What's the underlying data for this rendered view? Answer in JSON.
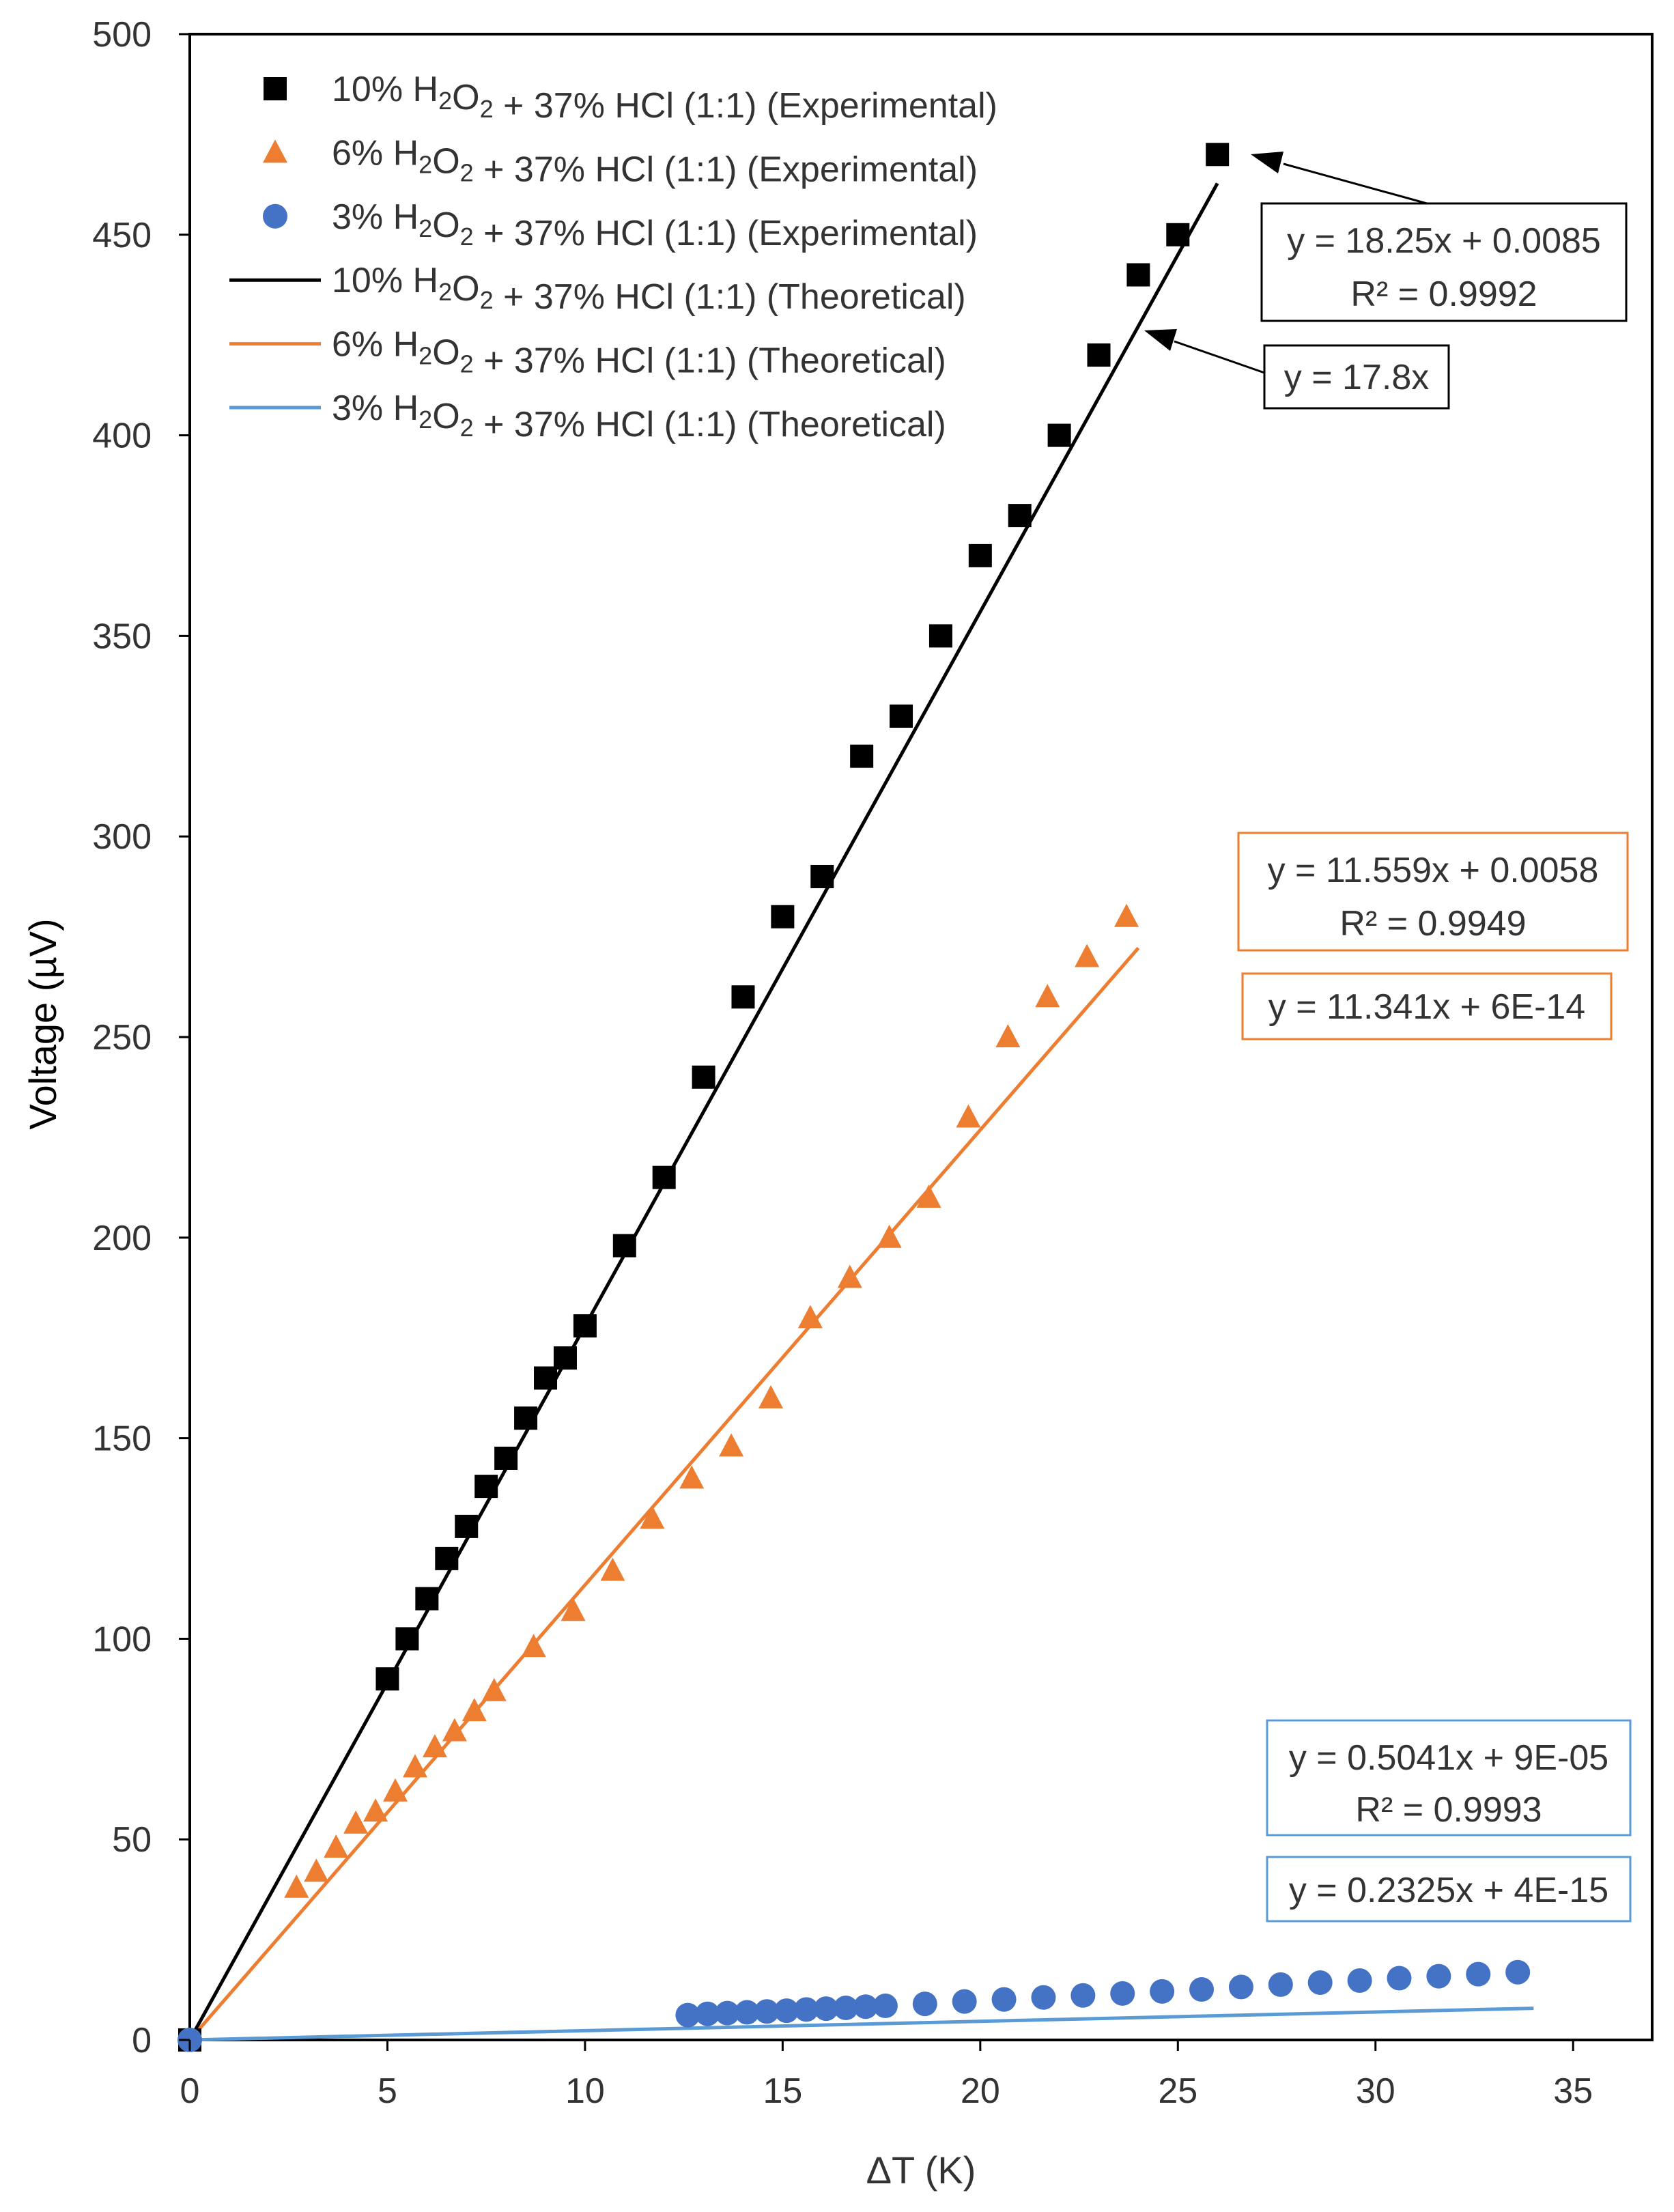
{
  "chart_data": {
    "type": "scatter",
    "title": "",
    "xlabel": "ΔT (K)",
    "ylabel": "Voltage (µV)",
    "xlim": [
      0,
      37
    ],
    "ylim": [
      0,
      500
    ],
    "x_ticks": [
      0,
      5,
      10,
      15,
      20,
      25,
      30,
      35
    ],
    "y_ticks": [
      0,
      50,
      100,
      150,
      200,
      250,
      300,
      350,
      400,
      450,
      500
    ],
    "x_tick_labels": [
      "0",
      "5",
      "10",
      "15",
      "20",
      "25",
      "30",
      "35"
    ],
    "y_tick_labels": [
      "0",
      "50",
      "100",
      "150",
      "200",
      "250",
      "300",
      "350",
      "400",
      "450",
      "500"
    ],
    "grid": false,
    "legend_position": "top-left",
    "colors": {
      "black": "#000000",
      "orange": "#ED7D31",
      "blue": "#4472C4",
      "lightblue": "#5B9BD5"
    },
    "series": [
      {
        "name": "10% H2O2 + 37% HCl (1:1) (Experimental)",
        "legend_parts": {
          "a": "10% H",
          "b": "2",
          "c": "O",
          "d": "2",
          "e": " + 37% HCl (1:1) (Experimental)"
        },
        "marker": "square",
        "color": "#000000",
        "x": [
          0,
          5,
          5.5,
          6,
          6.5,
          7,
          7.5,
          8,
          8.5,
          9,
          9.5,
          10,
          11,
          12,
          13,
          14,
          15,
          16,
          17,
          18,
          19,
          20,
          21,
          22,
          23,
          24,
          25,
          26
        ],
        "y": [
          0,
          90,
          100,
          110,
          120,
          128,
          138,
          145,
          155,
          165,
          170,
          178,
          198,
          215,
          240,
          260,
          280,
          290,
          320,
          330,
          350,
          370,
          380,
          400,
          420,
          440,
          450,
          470
        ]
      },
      {
        "name": "6% H2O2 + 37% HCl (1:1) (Experimental)",
        "legend_parts": {
          "a": "6% H",
          "b": "2",
          "c": "O",
          "d": "2",
          "e": " + 37% HCl (1:1) (Experimental)"
        },
        "marker": "triangle",
        "color": "#ED7D31",
        "x": [
          2.7,
          3.2,
          3.7,
          4.2,
          4.7,
          5.2,
          5.7,
          6.2,
          6.7,
          7.2,
          7.7,
          8.7,
          9.7,
          10.7,
          11.7,
          12.7,
          13.7,
          14.7,
          15.7,
          16.7,
          17.7,
          18.7,
          19.7,
          20.7,
          21.7,
          22.7,
          23.7
        ],
        "y": [
          38,
          42,
          48,
          54,
          57,
          62,
          68,
          73,
          77,
          82,
          87,
          98,
          107,
          117,
          130,
          140,
          148,
          160,
          180,
          190,
          200,
          210,
          230,
          250,
          260,
          270,
          280
        ]
      },
      {
        "name": "3% H2O2 + 37% HCl (1:1) (Experimental)",
        "legend_parts": {
          "a": "3% H",
          "b": "2",
          "c": "O",
          "d": "2",
          "e": " + 37% HCl (1:1) (Experimental)"
        },
        "marker": "circle",
        "color": "#4472C4",
        "x": [
          0,
          12.6,
          13.1,
          13.6,
          14.1,
          14.6,
          15.1,
          15.6,
          16.1,
          16.6,
          17.1,
          17.6,
          18.6,
          19.6,
          20.6,
          21.6,
          22.6,
          23.6,
          24.6,
          25.6,
          26.6,
          27.6,
          28.6,
          29.6,
          30.6,
          31.6,
          32.6,
          33.6
        ],
        "y": [
          0,
          6.2,
          6.5,
          6.7,
          6.9,
          7.1,
          7.3,
          7.6,
          7.8,
          8.0,
          8.3,
          8.5,
          9.0,
          9.6,
          10.1,
          10.6,
          11.1,
          11.6,
          12.1,
          12.6,
          13.2,
          13.8,
          14.3,
          14.8,
          15.4,
          15.9,
          16.4,
          16.9
        ]
      },
      {
        "name": "10% H2O2 + 37% HCl (1:1) (Theoretical)",
        "legend_parts": {
          "a": "10% H",
          "b": "2",
          "c": "O",
          "d": "2",
          "e": " + 37% HCl (1:1) (Theoretical)"
        },
        "marker": "line",
        "color": "#000000",
        "x": [
          0,
          26
        ],
        "y": [
          0,
          462.8
        ]
      },
      {
        "name": "6% H2O2 + 37% HCl (1:1) (Theoretical)",
        "legend_parts": {
          "a": "6% H",
          "b": "2",
          "c": "O",
          "d": "2",
          "e": " + 37% HCl (1:1) (Theoretical)"
        },
        "marker": "line",
        "color": "#ED7D31",
        "x": [
          0,
          24
        ],
        "y": [
          0,
          272.2
        ]
      },
      {
        "name": "3% H2O2 + 37% HCl (1:1) (Theoretical)",
        "legend_parts": {
          "a": "3% H",
          "b": "2",
          "c": "O",
          "d": "2",
          "e": " + 37% HCl (1:1) (Theoretical)"
        },
        "marker": "line",
        "color": "#5B9BD5",
        "x": [
          0,
          34
        ],
        "y": [
          0,
          7.9
        ]
      }
    ],
    "annotations": {
      "black_fit": {
        "line1": "y = 18.25x + 0.0085",
        "line2": "R² = 0.9992",
        "color": "#000000"
      },
      "black_theory": {
        "line1": "y = 17.8x",
        "color": "#000000"
      },
      "orange_fit": {
        "line1": "y = 11.559x + 0.0058",
        "line2": "R² = 0.9949",
        "color": "#ED7D31"
      },
      "orange_theory": {
        "line1": "y = 11.341x + 6E-14",
        "color": "#ED7D31"
      },
      "blue_fit": {
        "line1": "y = 0.5041x + 9E-05",
        "line2": "R² = 0.9993",
        "color": "#5B9BD5"
      },
      "blue_theory": {
        "line1": "y = 0.2325x + 4E-15",
        "color": "#5B9BD5"
      }
    }
  }
}
